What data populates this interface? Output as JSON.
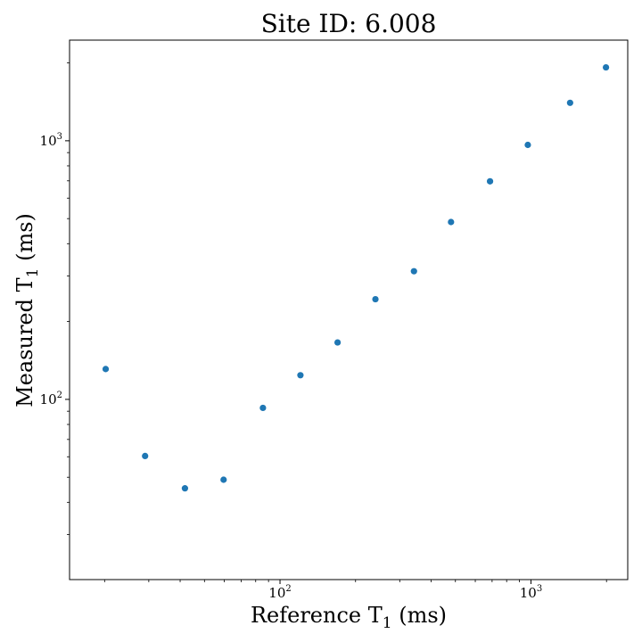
{
  "chart_data": {
    "type": "scatter",
    "title": "Site ID: 6.008",
    "xlabel_main": "Reference T",
    "xlabel_sub": "1",
    "xlabel_unit": " (ms)",
    "ylabel_main": "Measured T",
    "ylabel_sub": "1",
    "ylabel_unit": " (ms)",
    "x_scale": "log",
    "y_scale": "log",
    "xlim": [
      14.5,
      2430
    ],
    "ylim": [
      20.1,
      2450
    ],
    "grid": false,
    "marker_color": "#1f77b4",
    "xticks": [
      {
        "value": 100,
        "base": "10",
        "exp": "2"
      },
      {
        "value": 1000,
        "base": "10",
        "exp": "3"
      }
    ],
    "yticks": [
      {
        "value": 100,
        "base": "10",
        "exp": "2"
      },
      {
        "value": 1000,
        "base": "10",
        "exp": "3"
      }
    ],
    "points": [
      {
        "x": 20.2,
        "y": 131
      },
      {
        "x": 29.0,
        "y": 60.4
      },
      {
        "x": 41.8,
        "y": 45.3
      },
      {
        "x": 59.6,
        "y": 48.9
      },
      {
        "x": 85.5,
        "y": 92.7
      },
      {
        "x": 120.6,
        "y": 124
      },
      {
        "x": 169.6,
        "y": 166
      },
      {
        "x": 240.0,
        "y": 244
      },
      {
        "x": 341.8,
        "y": 313
      },
      {
        "x": 480.2,
        "y": 485
      },
      {
        "x": 686.9,
        "y": 697
      },
      {
        "x": 971.5,
        "y": 964
      },
      {
        "x": 1432,
        "y": 1402
      },
      {
        "x": 1990,
        "y": 1922
      }
    ]
  }
}
